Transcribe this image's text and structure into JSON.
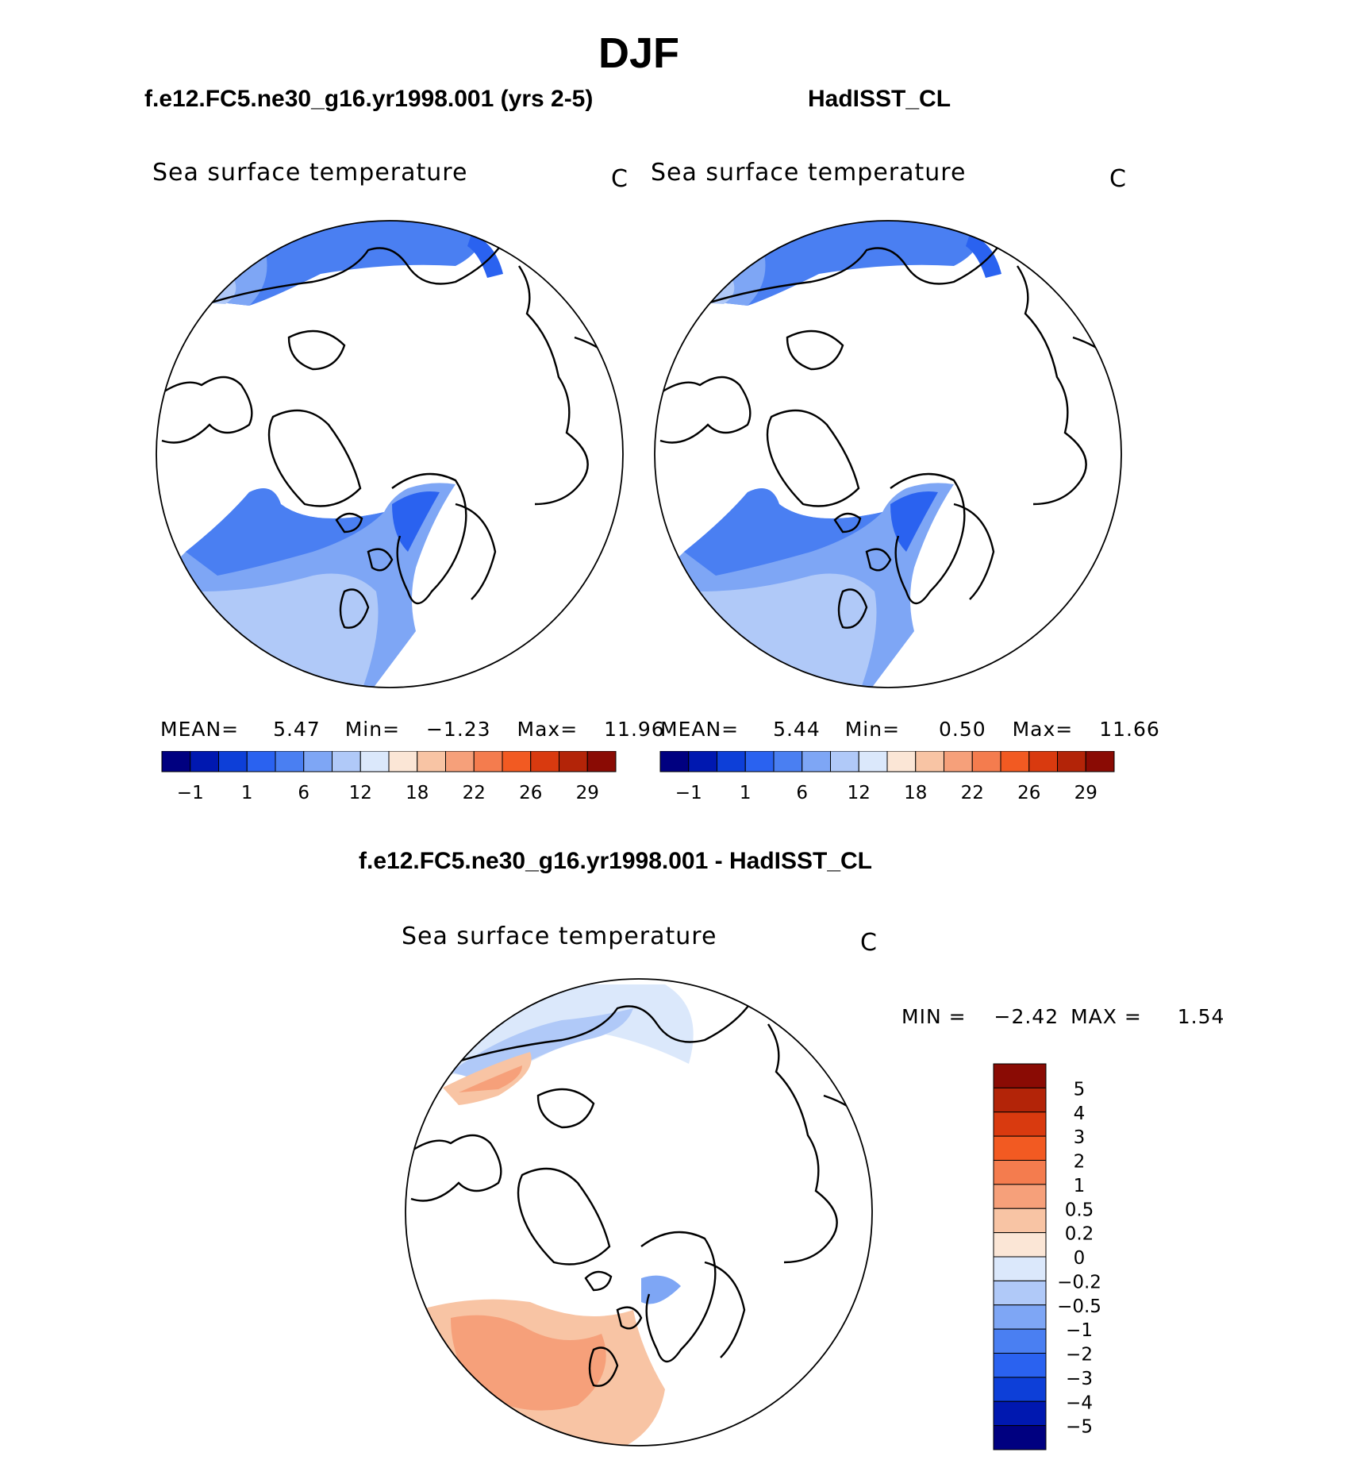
{
  "page": {
    "title": "DJF",
    "panel_left_title": "f.e12.FC5.ne30_g16.yr1998.001 (yrs 2-5)",
    "panel_right_title": "HadISST_CL",
    "panel_diff_title": "f.e12.FC5.ne30_g16.yr1998.001 - HadISST_CL"
  },
  "chart_data": [
    {
      "type": "heatmap",
      "projection": "north-polar-stereographic",
      "title": "Sea surface temperature",
      "units": "C",
      "stats": {
        "mean_label": "MEAN=",
        "mean": "5.47",
        "min_label": "Min=",
        "min": "−1.23",
        "max_label": "Max=",
        "max": "11.96"
      },
      "colorbar_levels": [
        "−1",
        "1",
        "6",
        "12",
        "18",
        "22",
        "26",
        "29"
      ],
      "colorbar_colors": [
        "#000080",
        "#0018b0",
        "#0d3fd8",
        "#2a62f0",
        "#4a7ff2",
        "#7ea6f5",
        "#b0c9f8",
        "#dbe8fb",
        "#fbe6d6",
        "#f8c4a4",
        "#f6a07a",
        "#f47c4e",
        "#f25a22",
        "#d93a0f",
        "#b32408",
        "#8a0b04"
      ],
      "ocean_regions": "Pacific and Atlantic sectors south of ice edge; blue shades"
    },
    {
      "type": "heatmap",
      "projection": "north-polar-stereographic",
      "title": "Sea surface temperature",
      "units": "C",
      "stats": {
        "mean_label": "MEAN=",
        "mean": "5.44",
        "min_label": "Min=",
        "min": "0.50",
        "max_label": "Max=",
        "max": "11.66"
      },
      "colorbar_levels": [
        "−1",
        "1",
        "6",
        "12",
        "18",
        "22",
        "26",
        "29"
      ],
      "colorbar_colors": [
        "#000080",
        "#0018b0",
        "#0d3fd8",
        "#2a62f0",
        "#4a7ff2",
        "#7ea6f5",
        "#b0c9f8",
        "#dbe8fb",
        "#fbe6d6",
        "#f8c4a4",
        "#f6a07a",
        "#f47c4e",
        "#f25a22",
        "#d93a0f",
        "#b32408",
        "#8a0b04"
      ],
      "ocean_regions": "Pacific and Atlantic sectors south of ice edge; blue shades"
    },
    {
      "type": "heatmap",
      "projection": "north-polar-stereographic",
      "title": "Sea surface temperature",
      "units": "C",
      "stats": {
        "min_label": "MIN =",
        "min": "−2.42",
        "max_label": "MAX =",
        "max": "1.54"
      },
      "colorbar_levels": [
        "5",
        "4",
        "3",
        "2",
        "1",
        "0.5",
        "0.2",
        "0",
        "−0.2",
        "−0.5",
        "−1",
        "−2",
        "−3",
        "−4",
        "−5"
      ],
      "colorbar_colors": [
        "#8a0b04",
        "#b32408",
        "#d93a0f",
        "#f25a22",
        "#f47c4e",
        "#f6a07a",
        "#f8c4a4",
        "#fbe6d6",
        "#dbe8fb",
        "#b0c9f8",
        "#7ea6f5",
        "#4a7ff2",
        "#2a62f0",
        "#0d3fd8",
        "#0018b0",
        "#000080"
      ],
      "ocean_regions": "Atlantic sector mostly positive (orange), Pacific sector mixed light blue with a warm band"
    }
  ]
}
